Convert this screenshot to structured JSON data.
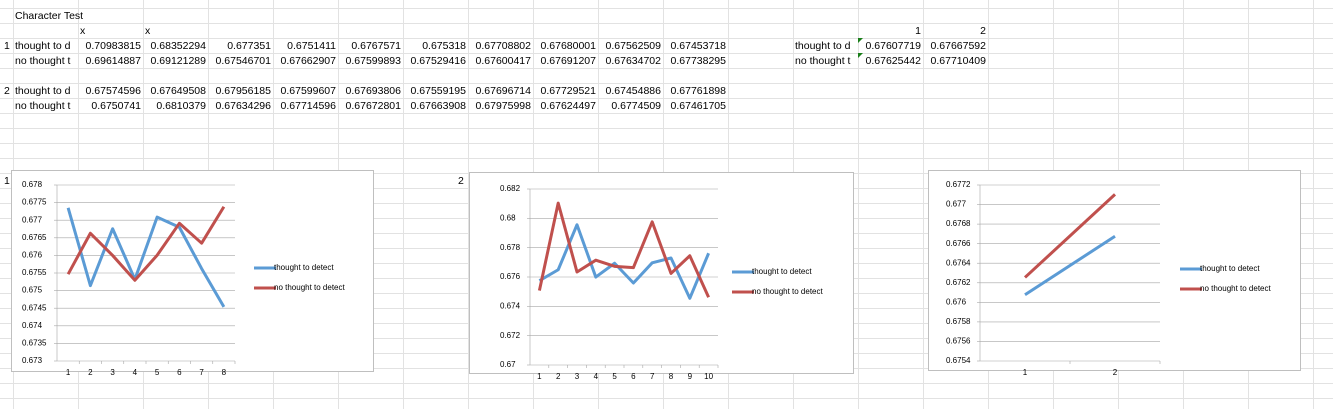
{
  "sheet": {
    "title": "Character Test",
    "x_labels": [
      "x",
      "x"
    ],
    "blocks": [
      {
        "label": "1",
        "rows": [
          {
            "name": "thought to d",
            "values": [
              0.70983815,
              0.68352294,
              0.677351,
              0.6751411,
              0.6767571,
              0.675318,
              0.67708802,
              0.67680001,
              0.67562509,
              0.67453718
            ]
          },
          {
            "name": "no thought t",
            "values": [
              0.69614887,
              0.69121289,
              0.67546701,
              0.67662907,
              0.67599893,
              0.67529416,
              0.67600417,
              0.67691207,
              0.67634702,
              0.67738295
            ]
          }
        ]
      },
      {
        "label": "2",
        "rows": [
          {
            "name": "thought to d",
            "values": [
              0.67574596,
              0.67649508,
              0.67956185,
              0.67599607,
              0.67693806,
              0.67559195,
              0.67696714,
              0.67729521,
              0.67454886,
              0.67761898
            ]
          },
          {
            "name": "no thought t",
            "values": [
              0.6750741,
              0.6810379,
              0.67634296,
              0.67714596,
              0.67672801,
              0.67663908,
              0.67975998,
              0.67624497,
              0.6774509,
              0.67461705
            ]
          }
        ]
      }
    ],
    "summary": {
      "headers": [
        "1",
        "2"
      ],
      "rows": [
        {
          "name": "thought to d",
          "values": [
            0.67607719,
            0.67667592
          ]
        },
        {
          "name": "no thought t",
          "values": [
            0.67625442,
            0.67710409
          ]
        }
      ]
    },
    "chart_labels": [
      "1",
      "2"
    ]
  },
  "chart_data": [
    {
      "type": "line",
      "categories": [
        "1",
        "2",
        "3",
        "4",
        "5",
        "6",
        "7",
        "8"
      ],
      "series": [
        {
          "name": "thought to detect",
          "color": "#5b9bd5",
          "values": [
            0.677351,
            0.6751411,
            0.6767571,
            0.675318,
            0.67708802,
            0.67680001,
            0.67562509,
            0.67453718
          ]
        },
        {
          "name": "no thought to detect",
          "color": "#c0504d",
          "values": [
            0.67546701,
            0.67662907,
            0.67599893,
            0.67529416,
            0.67600417,
            0.67691207,
            0.67634702,
            0.67738295
          ]
        }
      ],
      "ylim": [
        0.673,
        0.678
      ],
      "yticks": [
        0.673,
        0.6735,
        0.674,
        0.6745,
        0.675,
        0.6755,
        0.676,
        0.6765,
        0.677,
        0.6775,
        0.678
      ],
      "grid": true
    },
    {
      "type": "line",
      "categories": [
        "1",
        "2",
        "3",
        "4",
        "5",
        "6",
        "7",
        "8",
        "9",
        "10"
      ],
      "series": [
        {
          "name": "thought to detect",
          "color": "#5b9bd5",
          "values": [
            0.67574596,
            0.67649508,
            0.67956185,
            0.67599607,
            0.67693806,
            0.67559195,
            0.67696714,
            0.67729521,
            0.67454886,
            0.67761898
          ]
        },
        {
          "name": "no thought to detect",
          "color": "#c0504d",
          "values": [
            0.6750741,
            0.6810379,
            0.67634296,
            0.67714596,
            0.67672801,
            0.67663908,
            0.67975998,
            0.67624497,
            0.6774509,
            0.67461705
          ]
        }
      ],
      "ylim": [
        0.67,
        0.682
      ],
      "yticks": [
        0.67,
        0.672,
        0.674,
        0.676,
        0.678,
        0.68,
        0.682
      ],
      "grid": true
    },
    {
      "type": "line",
      "categories": [
        "1",
        "2"
      ],
      "series": [
        {
          "name": "thought to detect",
          "color": "#5b9bd5",
          "values": [
            0.67607719,
            0.67667592
          ]
        },
        {
          "name": "no thought to detect",
          "color": "#c0504d",
          "values": [
            0.67625442,
            0.67710409
          ]
        }
      ],
      "ylim": [
        0.6754,
        0.6772
      ],
      "yticks": [
        0.6754,
        0.6756,
        0.6758,
        0.676,
        0.6762,
        0.6764,
        0.6766,
        0.6768,
        0.677,
        0.6772
      ],
      "grid": true
    }
  ]
}
